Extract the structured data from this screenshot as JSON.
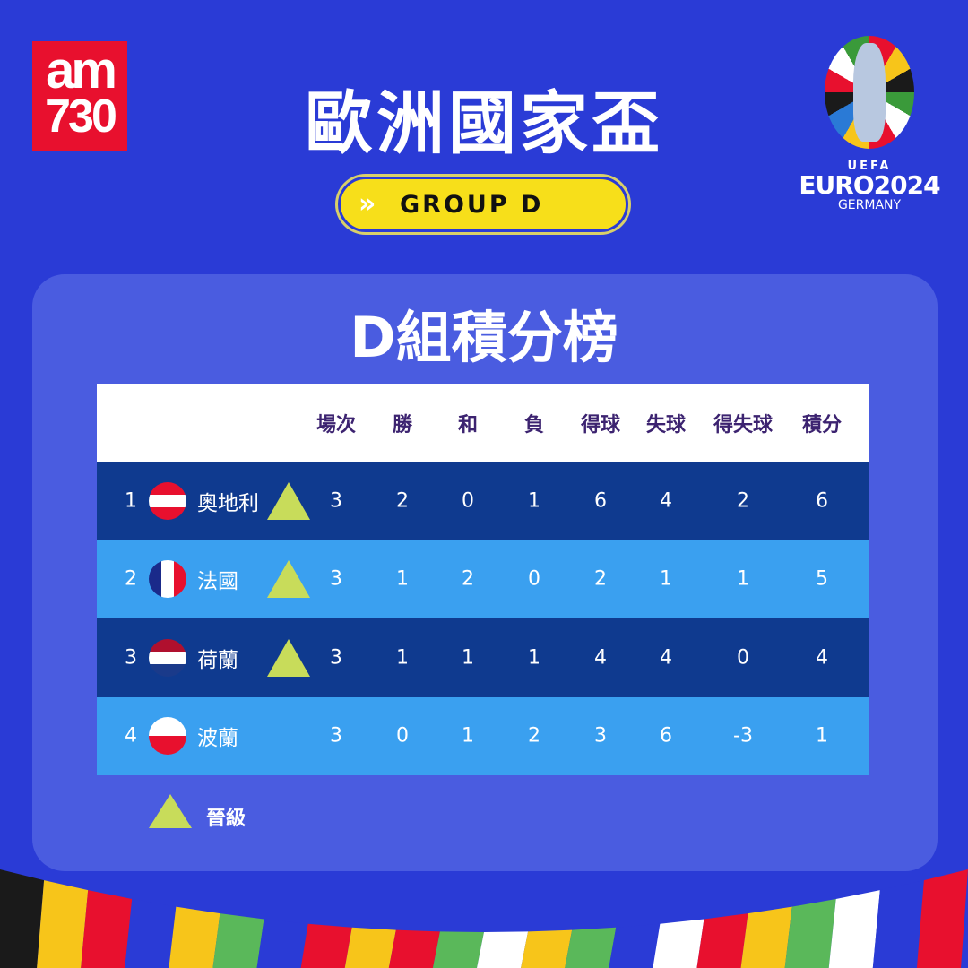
{
  "brand": {
    "logo_line1": "am",
    "logo_line2": "730"
  },
  "title": "歐洲國家盃",
  "group_pill": {
    "label": "GROUP D",
    "icon": "double-chevron-right-icon"
  },
  "euro_logo": {
    "uefa": "UEFA",
    "name": "EURO2024",
    "country": "GERMANY"
  },
  "panel_title": "D組積分榜",
  "table": {
    "headers": [
      "場次",
      "勝",
      "和",
      "負",
      "得球",
      "失球",
      "得失球",
      "積分"
    ],
    "rows": [
      {
        "rank": "1",
        "team": "奧地利",
        "flag": [
          "#e8102e",
          "#ffffff",
          "#e8102e"
        ],
        "flag_dir": "h",
        "qualified": true,
        "values": [
          "3",
          "2",
          "0",
          "1",
          "6",
          "4",
          "2",
          "6"
        ]
      },
      {
        "rank": "2",
        "team": "法國",
        "flag": [
          "#1a2a8a",
          "#ffffff",
          "#e8102e"
        ],
        "flag_dir": "v",
        "qualified": true,
        "values": [
          "3",
          "1",
          "2",
          "0",
          "2",
          "1",
          "1",
          "5"
        ]
      },
      {
        "rank": "3",
        "team": "荷蘭",
        "flag": [
          "#b0102e",
          "#ffffff",
          "#1a3a8a"
        ],
        "flag_dir": "h",
        "qualified": true,
        "values": [
          "3",
          "1",
          "1",
          "1",
          "4",
          "4",
          "0",
          "4"
        ]
      },
      {
        "rank": "4",
        "team": "波蘭",
        "flag": [
          "#ffffff",
          "#e8102e"
        ],
        "flag_dir": "h",
        "qualified": false,
        "values": [
          "3",
          "0",
          "1",
          "2",
          "3",
          "6",
          "-3",
          "1"
        ]
      }
    ]
  },
  "legend": {
    "label": "晉級",
    "icon": "triangle-up-icon"
  },
  "colors": {
    "background": "#2a3bd6",
    "panel": "#4a5ce0",
    "row_dark": "#0f3a8f",
    "row_light": "#3aa0f0",
    "qualified": "#c8dc5a",
    "pill": "#f7df1a",
    "header_text": "#3c2370"
  }
}
